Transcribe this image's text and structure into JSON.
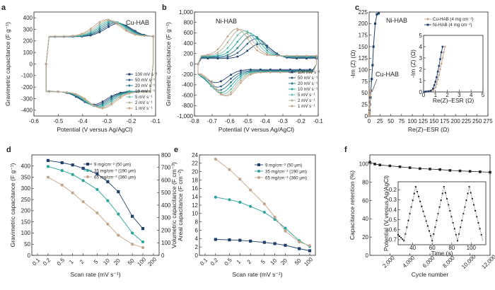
{
  "colors": {
    "dark": "#1f3f6b",
    "teal": "#2aa39a",
    "tan": "#c2a58a",
    "grey": "#8c8c8c"
  },
  "chart_data": [
    {
      "id": "a",
      "type": "line",
      "panel_label": "a",
      "annotation": "Cu-HAB",
      "xlabel": "Potential (V versus Ag/AgCl)",
      "ylabel": "Gravimetric capacitance (F g⁻¹)",
      "xlim": [
        -0.6,
        -0.1
      ],
      "ylim": [
        -450,
        450
      ],
      "xticks": [
        -0.6,
        -0.5,
        -0.4,
        -0.3,
        -0.2,
        -0.1
      ],
      "xtick_labels": [
        "-0.6",
        "-0.5",
        "-0.4",
        "-0.3",
        "-0.2",
        "-0.1"
      ],
      "yticks": [
        -400,
        -300,
        -200,
        -100,
        0,
        100,
        200,
        300,
        400
      ],
      "ytick_labels": [
        "-400",
        "-300",
        "-200",
        "-100",
        "0",
        "100",
        "200",
        "300",
        "400"
      ],
      "legend_position": "bottom-right",
      "legend": [
        "100 mV s⁻¹",
        "50 mV s⁻¹",
        "20 mV s⁻¹",
        "10 mV s⁻¹",
        "5 mV s⁻¹",
        "2 mV s⁻¹",
        "1 mV s⁻¹"
      ],
      "cv": {
        "xmin": -0.55,
        "xmax": -0.11,
        "base": 240,
        "peak_ox": [
          -0.3,
          140
        ],
        "peak_red": [
          -0.32,
          140
        ],
        "shift": 0.0
      },
      "series": [
        {
          "name": "100 mV s⁻¹",
          "color": "#1f3f6b",
          "scale": 0.82,
          "shift": 0.02
        },
        {
          "name": "50 mV s⁻¹",
          "color": "#2a5a80",
          "scale": 0.86,
          "shift": 0.015
        },
        {
          "name": "20 mV s⁻¹",
          "color": "#2c7a8c",
          "scale": 0.9,
          "shift": 0.01
        },
        {
          "name": "10 mV s⁻¹",
          "color": "#2aa39a",
          "scale": 0.94,
          "shift": 0.006
        },
        {
          "name": "5 mV s⁻¹",
          "color": "#6cbfb0",
          "scale": 0.97,
          "shift": 0.003
        },
        {
          "name": "2 mV s⁻¹",
          "color": "#b7b09a",
          "scale": 1.0,
          "shift": 0.0
        },
        {
          "name": "1 mV s⁻¹",
          "color": "#c2a58a",
          "scale": 1.02,
          "shift": 0.0
        }
      ]
    },
    {
      "id": "b",
      "type": "line",
      "panel_label": "b",
      "annotation": "Ni-HAB",
      "xlabel": "Potential (V versus Ag/AgCl)",
      "ylabel": "Gravimetric capacitance (F g⁻¹)",
      "xlim": [
        -0.8,
        -0.1
      ],
      "ylim": [
        -1000,
        1000
      ],
      "xticks": [
        -0.8,
        -0.7,
        -0.6,
        -0.5,
        -0.4,
        -0.3,
        -0.2,
        -0.1
      ],
      "xtick_labels": [
        "-0.8",
        "-0.7",
        "-0.6",
        "-0.5",
        "-0.4",
        "-0.3",
        "-0.2",
        "-0.1"
      ],
      "yticks": [
        -1000,
        -800,
        -600,
        -400,
        -200,
        0,
        200,
        400,
        600,
        800,
        1000
      ],
      "ytick_labels": [
        "-1,000",
        "-800",
        "-600",
        "-400",
        "-200",
        "0",
        "200",
        "400",
        "600",
        "800",
        "1,000"
      ],
      "legend_position": "bottom-right",
      "legend": [
        "100 mV s⁻¹",
        "50 mV s⁻¹",
        "20 mV s⁻¹",
        "10 mV s⁻¹",
        "5 mV s⁻¹",
        "2 mV s⁻¹",
        "1 mV s⁻¹"
      ]
    },
    {
      "id": "c",
      "type": "scatter",
      "panel_label": "c",
      "annotations": [
        "Ni-HAB",
        "Cu-HAB"
      ],
      "xlabel": "Re(Z)–ESR (Ω)",
      "ylabel": "-Im (Z) (Ω)",
      "xlim": [
        0,
        275
      ],
      "ylim": [
        0,
        225
      ],
      "xticks": [
        0,
        25,
        50,
        75,
        100,
        125,
        150,
        175,
        200,
        225,
        250,
        275
      ],
      "xtick_labels": [
        "0",
        "25",
        "50",
        "75",
        "100",
        "125",
        "150",
        "175",
        "200",
        "225",
        "250",
        "275"
      ],
      "yticks": [
        0,
        25,
        50,
        75,
        100,
        125,
        150,
        175,
        200,
        225
      ],
      "ytick_labels": [
        "0",
        "25",
        "50",
        "75",
        "100",
        "125",
        "150",
        "175",
        "200",
        "225"
      ],
      "series": [
        {
          "name": "Ni-HAB",
          "x": [
            0,
            0.5,
            1,
            2,
            3,
            4,
            6,
            8,
            10,
            14,
            18,
            22
          ],
          "y": [
            0,
            5,
            12,
            25,
            40,
            55,
            80,
            110,
            150,
            200,
            220,
            222
          ]
        },
        {
          "name": "Cu-HAB",
          "x": [
            0,
            0.3,
            0.6,
            1,
            1.5,
            2,
            2.5,
            3
          ],
          "y": [
            0,
            4,
            9,
            16,
            25,
            35,
            45,
            55
          ]
        }
      ],
      "inset": {
        "xlabel": "Re(Z)–ESR (Ω)",
        "ylabel": "-Im (Z) (Ω)",
        "xlim": [
          0,
          5
        ],
        "ylim": [
          0,
          5
        ],
        "ticks": [
          0,
          1,
          2,
          3,
          4,
          5
        ],
        "tick_labels": [
          "0",
          "1",
          "2",
          "3",
          "4",
          "5"
        ],
        "legend": [
          "Cu-HAB (4 mg cm⁻²)",
          "Ni-HAB (4 mg cm⁻²)"
        ],
        "series": [
          {
            "name": "Cu-HAB (4 mg cm⁻²)",
            "x": [
              0.05,
              0.2,
              0.4,
              0.6,
              0.8,
              1.0,
              1.1,
              1.2,
              1.3,
              1.4,
              1.5,
              1.6,
              1.7,
              1.8
            ],
            "y": [
              0,
              0.02,
              0.05,
              0.08,
              0.15,
              0.4,
              0.7,
              1.1,
              1.5,
              2.0,
              2.5,
              3.0,
              3.5,
              4.0
            ]
          },
          {
            "name": "Ni-HAB (4 mg cm⁻²)",
            "x": [
              0.05,
              0.2,
              0.4,
              0.6,
              0.8,
              0.9,
              1.0,
              1.1,
              1.2,
              1.3,
              1.4,
              1.5,
              1.6
            ],
            "y": [
              0,
              0.03,
              0.06,
              0.1,
              0.3,
              0.6,
              0.9,
              1.3,
              1.8,
              2.3,
              2.9,
              3.5,
              4.0
            ]
          }
        ]
      }
    },
    {
      "id": "d",
      "type": "line",
      "panel_label": "d",
      "xlabel": "Scan rate (mV s⁻¹)",
      "ylabel": "Gravimetric capacitance (F g⁻¹)",
      "ylabel_right": "Volumetric capacitance (F cm⁻³)",
      "xscale": "log",
      "x": [
        0.2,
        0.5,
        1,
        2,
        5,
        10,
        20,
        50,
        100
      ],
      "xticks": [
        0.1,
        0.2,
        0.5,
        1,
        2,
        5,
        10,
        20,
        50,
        100,
        200
      ],
      "xtick_labels": [
        "0.1",
        "0.2",
        "0.5",
        "1",
        "2",
        "5",
        "10",
        "20",
        "50",
        "100",
        "200"
      ],
      "ylim": [
        0,
        450
      ],
      "yticks": [
        0,
        50,
        100,
        150,
        200,
        250,
        300,
        350,
        400
      ],
      "ytick_labels": [
        "0",
        "50",
        "100",
        "150",
        "200",
        "250",
        "300",
        "350",
        "400"
      ],
      "ylim_right": [
        0,
        800
      ],
      "yticks_right": [
        0,
        100,
        200,
        300,
        400,
        500,
        600,
        700,
        800
      ],
      "ytick_labels_right": [
        "0",
        "100",
        "200",
        "300",
        "400",
        "500",
        "600",
        "700",
        "800"
      ],
      "legend_position": "top-right",
      "series": [
        {
          "name": "9 mg/cm⁻² (50 μm)",
          "values": [
            425,
            415,
            405,
            390,
            365,
            330,
            285,
            175,
            120
          ]
        },
        {
          "name": "35 mg/cm⁻² (190 μm)",
          "values": [
            398,
            380,
            362,
            335,
            295,
            245,
            185,
            100,
            60
          ]
        },
        {
          "name": "65 mg/cm⁻² (360 μm)",
          "values": [
            350,
            315,
            280,
            240,
            190,
            140,
            90,
            50,
            35
          ]
        }
      ]
    },
    {
      "id": "e",
      "type": "line",
      "panel_label": "e",
      "xlabel": "Scan rate (mV s⁻¹)",
      "ylabel": "Areal capacitance (F cm⁻²)",
      "xscale": "log",
      "x": [
        0.2,
        0.5,
        1,
        2,
        5,
        10,
        20,
        50,
        100
      ],
      "xticks": [
        0.1,
        0.2,
        0.5,
        1,
        2,
        5,
        10,
        20,
        50,
        100
      ],
      "xtick_labels": [
        "0.1",
        "0.2",
        "0.5",
        "1",
        "2",
        "5",
        "10",
        "20",
        "50",
        "100"
      ],
      "ylim": [
        0,
        24
      ],
      "yticks": [
        0,
        2,
        4,
        6,
        8,
        10,
        12,
        14,
        16,
        18,
        20,
        22,
        24
      ],
      "ytick_labels": [
        "0",
        "2",
        "4",
        "6",
        "8",
        "10",
        "12",
        "14",
        "16",
        "18",
        "20",
        "22",
        "24"
      ],
      "legend_position": "top-right",
      "series": [
        {
          "name": "9 mg/cm⁻² (50 μm)",
          "values": [
            3.8,
            3.7,
            3.6,
            3.4,
            3.1,
            2.8,
            2.4,
            1.6,
            1.1
          ]
        },
        {
          "name": "35 mg/cm⁻² (190 μm)",
          "values": [
            13.9,
            13.3,
            12.7,
            11.7,
            10.3,
            8.6,
            6.5,
            3.5,
            2.1
          ]
        },
        {
          "name": "65 mg/cm⁻² (360 μm)",
          "values": [
            23,
            20.5,
            18.2,
            15.6,
            12.3,
            9.1,
            5.8,
            3.2,
            2.3
          ]
        }
      ]
    },
    {
      "id": "f",
      "type": "scatter",
      "panel_label": "f",
      "xlabel": "Cycle number",
      "ylabel": "Capacitance retention (%)",
      "xlim": [
        0,
        12000
      ],
      "ylim": [
        0,
        110
      ],
      "xticks": [
        2000,
        4000,
        6000,
        8000,
        10000,
        12000
      ],
      "xtick_labels": [
        "2,000",
        "4,000",
        "6,000",
        "8,000",
        "10,000",
        "12,000"
      ],
      "yticks": [
        0,
        20,
        40,
        60,
        80,
        100
      ],
      "ytick_labels": [
        "0",
        "20",
        "40",
        "60",
        "80",
        "100"
      ],
      "series": [
        {
          "name": "retention",
          "x": [
            0,
            500,
            1000,
            2000,
            3000,
            4000,
            5000,
            6000,
            7000,
            8000,
            9000,
            10000,
            11000,
            12000
          ],
          "y": [
            102,
            100,
            99,
            98,
            97,
            96,
            95,
            94.5,
            94,
            93,
            92.5,
            92,
            91.5,
            91
          ]
        }
      ],
      "inset": {
        "xlabel": "Time (s)",
        "ylabel": "Potential (V versus Ag/AgCl)",
        "xlim": [
          25,
          115
        ],
        "ylim": [
          -0.75,
          -0.12
        ],
        "xticks": [
          40,
          60,
          80,
          100
        ],
        "xtick_labels": [
          "40",
          "60",
          "80",
          "100"
        ],
        "yticks": [
          -0.7,
          -0.6,
          -0.5,
          -0.4,
          -0.3,
          -0.2
        ],
        "ytick_labels": [
          "-0.7",
          "-0.6",
          "-0.5",
          "-0.4",
          "-0.3",
          "-0.2"
        ],
        "cycles": {
          "start": 25,
          "min_times": [
            31,
            60,
            86,
            112
          ],
          "max_times": [
            43,
            72,
            98
          ],
          "vmin": -0.71,
          "vmax": -0.17
        }
      }
    }
  ]
}
